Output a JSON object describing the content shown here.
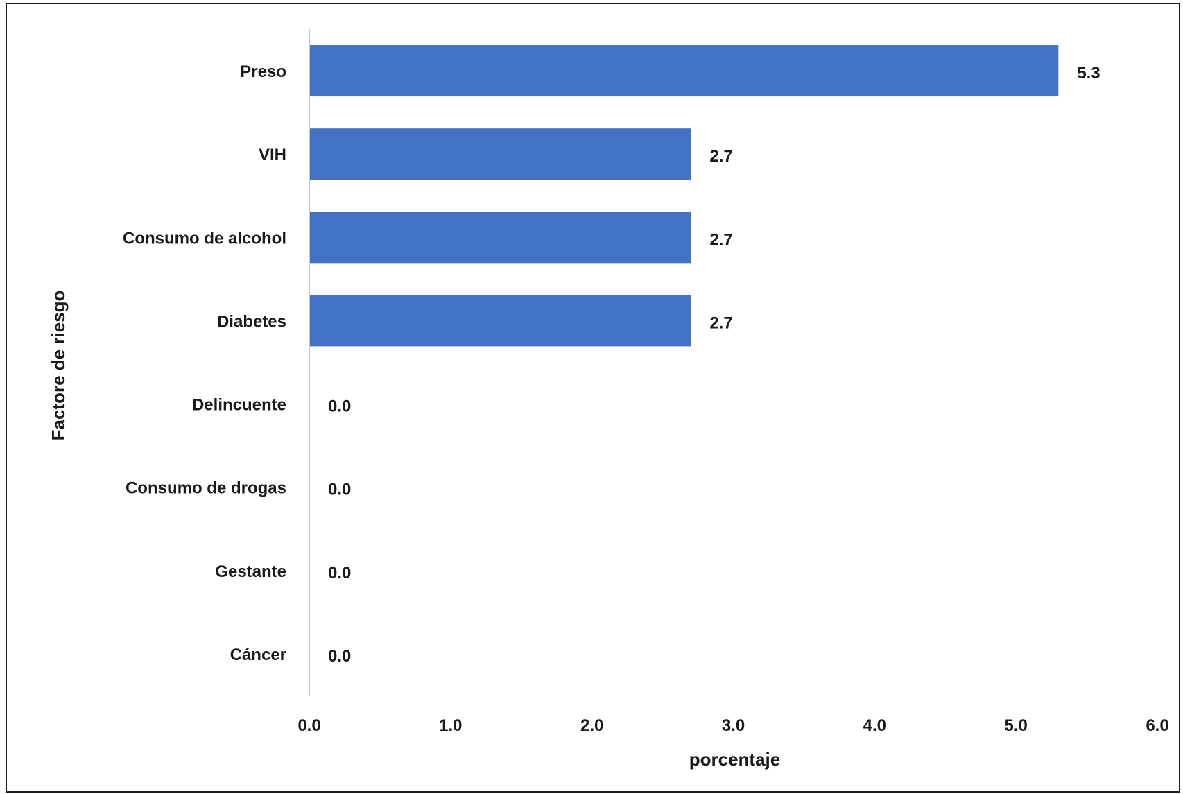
{
  "chart_data": {
    "type": "bar",
    "orientation": "horizontal",
    "categories": [
      "Preso",
      "VIH",
      "Consumo de alcohol",
      "Diabetes",
      "Delincuente",
      "Consumo de drogas",
      "Gestante",
      "Cáncer"
    ],
    "values": [
      5.3,
      2.7,
      2.7,
      2.7,
      0.0,
      0.0,
      0.0,
      0.0
    ],
    "value_labels": [
      "5.3",
      "2.7",
      "2.7",
      "2.7",
      "0.0",
      "0.0",
      "0.0",
      "0.0"
    ],
    "xlabel": "porcentaje",
    "ylabel": "Factore de riesgo",
    "xlim": [
      0,
      6
    ],
    "xticks": [
      "0.0",
      "1.0",
      "2.0",
      "3.0",
      "4.0",
      "5.0",
      "6.0"
    ],
    "grid": false,
    "legend": "none",
    "bar_color": "#4472C4"
  }
}
